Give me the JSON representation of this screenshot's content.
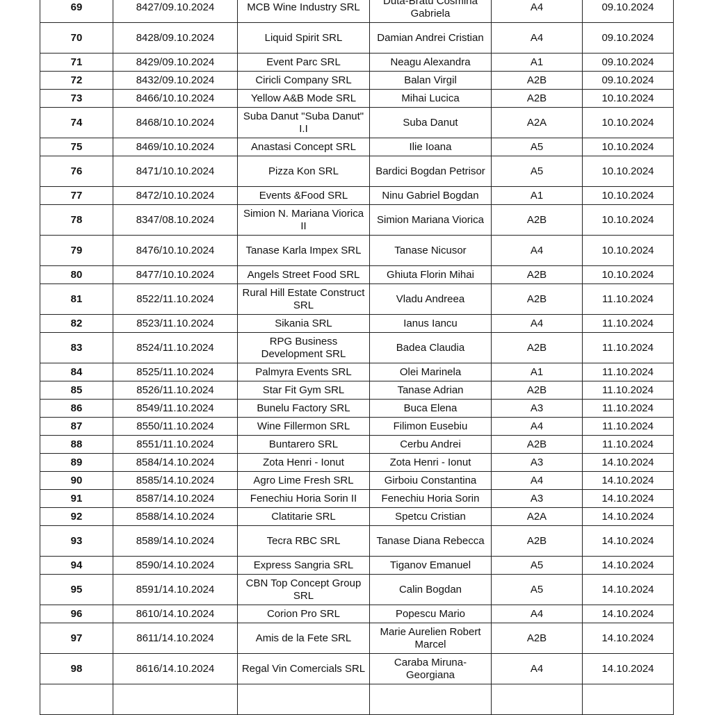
{
  "rows": [
    {
      "nr": "69",
      "doc": "8427/09.10.2024",
      "company": "MCB Wine Industry SRL",
      "person": "Duta-Bratu Cosmina Gabriela",
      "cls": "A4",
      "date": "09.10.2024",
      "tall": true
    },
    {
      "nr": "70",
      "doc": "8428/09.10.2024",
      "company": "Liquid Spirit SRL",
      "person": "Damian Andrei Cristian",
      "cls": "A4",
      "date": "09.10.2024",
      "tall": true
    },
    {
      "nr": "71",
      "doc": "8429/09.10.2024",
      "company": "Event Parc SRL",
      "person": "Neagu Alexandra",
      "cls": "A1",
      "date": "09.10.2024"
    },
    {
      "nr": "72",
      "doc": "8432/09.10.2024",
      "company": "Ciricli Company SRL",
      "person": "Balan Virgil",
      "cls": "A2B",
      "date": "09.10.2024"
    },
    {
      "nr": "73",
      "doc": "8466/10.10.2024",
      "company": "Yellow A&B Mode SRL",
      "person": "Mihai Lucica",
      "cls": "A2B",
      "date": "10.10.2024"
    },
    {
      "nr": "74",
      "doc": "8468/10.10.2024",
      "company": "Suba Danut \"Suba Danut\" I.I",
      "person": "Suba Danut",
      "cls": "A2A",
      "date": "10.10.2024",
      "tall": true
    },
    {
      "nr": "75",
      "doc": "8469/10.10.2024",
      "company": "Anastasi Concept SRL",
      "person": "Ilie Ioana",
      "cls": "A5",
      "date": "10.10.2024"
    },
    {
      "nr": "76",
      "doc": "8471/10.10.2024",
      "company": "Pizza Kon SRL",
      "person": "Bardici Bogdan Petrisor",
      "cls": "A5",
      "date": "10.10.2024",
      "tall": true
    },
    {
      "nr": "77",
      "doc": "8472/10.10.2024",
      "company": "Events &Food SRL",
      "person": "Ninu Gabriel Bogdan",
      "cls": "A1",
      "date": "10.10.2024"
    },
    {
      "nr": "78",
      "doc": "8347/08.10.2024",
      "company": "Simion N. Mariana Viorica II",
      "person": "Simion Mariana Viorica",
      "cls": "A2B",
      "date": "10.10.2024",
      "tall": true
    },
    {
      "nr": "79",
      "doc": "8476/10.10.2024",
      "company": "Tanase Karla Impex SRL",
      "person": "Tanase Nicusor",
      "cls": "A4",
      "date": "10.10.2024",
      "tall": true
    },
    {
      "nr": "80",
      "doc": "8477/10.10.2024",
      "company": "Angels Street Food SRL",
      "person": "Ghiuta Florin Mihai",
      "cls": "A2B",
      "date": "10.10.2024"
    },
    {
      "nr": "81",
      "doc": "8522/11.10.2024",
      "company": "Rural Hill Estate Construct SRL",
      "person": "Vladu Andreea",
      "cls": "A2B",
      "date": "11.10.2024",
      "tall": true
    },
    {
      "nr": "82",
      "doc": "8523/11.10.2024",
      "company": "Sikania SRL",
      "person": "Ianus Iancu",
      "cls": "A4",
      "date": "11.10.2024"
    },
    {
      "nr": "83",
      "doc": "8524/11.10.2024",
      "company": "RPG Business Development SRL",
      "person": "Badea Claudia",
      "cls": "A2B",
      "date": "11.10.2024",
      "tall": true
    },
    {
      "nr": "84",
      "doc": "8525/11.10.2024",
      "company": "Palmyra Events SRL",
      "person": "Olei Marinela",
      "cls": "A1",
      "date": "11.10.2024"
    },
    {
      "nr": "85",
      "doc": "8526/11.10.2024",
      "company": "Star Fit Gym SRL",
      "person": "Tanase Adrian",
      "cls": "A2B",
      "date": "11.10.2024"
    },
    {
      "nr": "86",
      "doc": "8549/11.10.2024",
      "company": "Bunelu Factory SRL",
      "person": "Buca Elena",
      "cls": "A3",
      "date": "11.10.2024"
    },
    {
      "nr": "87",
      "doc": "8550/11.10.2024",
      "company": "Wine Fillermon SRL",
      "person": "Filimon Eusebiu",
      "cls": "A4",
      "date": "11.10.2024"
    },
    {
      "nr": "88",
      "doc": "8551/11.10.2024",
      "company": "Buntarero SRL",
      "person": "Cerbu Andrei",
      "cls": "A2B",
      "date": "11.10.2024"
    },
    {
      "nr": "89",
      "doc": "8584/14.10.2024",
      "company": "Zota Henri - Ionut",
      "person": "Zota Henri - Ionut",
      "cls": "A3",
      "date": "14.10.2024"
    },
    {
      "nr": "90",
      "doc": "8585/14.10.2024",
      "company": "Agro Lime Fresh SRL",
      "person": "Girboiu Constantina",
      "cls": "A4",
      "date": "14.10.2024"
    },
    {
      "nr": "91",
      "doc": "8587/14.10.2024",
      "company": "Fenechiu Horia Sorin II",
      "person": "Fenechiu Horia Sorin",
      "cls": "A3",
      "date": "14.10.2024"
    },
    {
      "nr": "92",
      "doc": "8588/14.10.2024",
      "company": "Clatitarie SRL",
      "person": "Spetcu Cristian",
      "cls": "A2A",
      "date": "14.10.2024"
    },
    {
      "nr": "93",
      "doc": "8589/14.10.2024",
      "company": "Tecra RBC SRL",
      "person": "Tanase Diana Rebecca",
      "cls": "A2B",
      "date": "14.10.2024",
      "tall": true
    },
    {
      "nr": "94",
      "doc": "8590/14.10.2024",
      "company": "Express Sangria SRL",
      "person": "Tiganov Emanuel",
      "cls": "A5",
      "date": "14.10.2024"
    },
    {
      "nr": "95",
      "doc": "8591/14.10.2024",
      "company": "CBN Top Concept Group SRL",
      "person": "Calin Bogdan",
      "cls": "A5",
      "date": "14.10.2024",
      "tall": true
    },
    {
      "nr": "96",
      "doc": "8610/14.10.2024",
      "company": "Corion Pro SRL",
      "person": "Popescu Mario",
      "cls": "A4",
      "date": "14.10.2024"
    },
    {
      "nr": "97",
      "doc": "8611/14.10.2024",
      "company": "Amis de la Fete SRL",
      "person": "Marie Aurelien Robert Marcel",
      "cls": "A2B",
      "date": "14.10.2024",
      "tall": true
    },
    {
      "nr": "98",
      "doc": "8616/14.10.2024",
      "company": "Regal Vin Comercials SRL",
      "person": "Caraba Miruna-Georgiana",
      "cls": "A4",
      "date": "14.10.2024",
      "tall": true
    }
  ]
}
